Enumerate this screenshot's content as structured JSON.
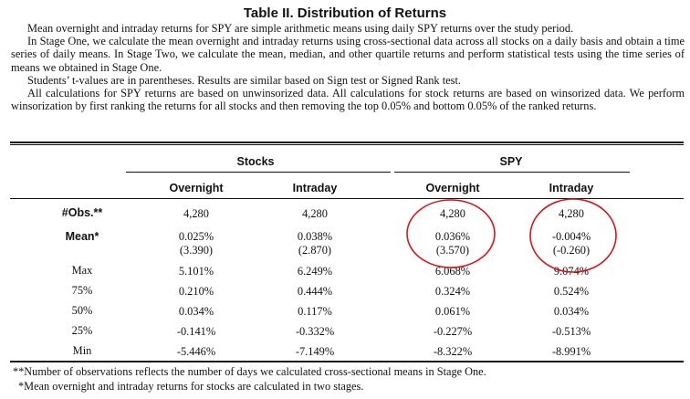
{
  "title": "Table II. Distribution of Returns",
  "description": [
    "Mean overnight and intraday returns for SPY are simple arithmetic means using daily SPY returns over the study period.",
    "In Stage One, we calculate the mean overnight and intraday returns using cross-sectional data across all stocks on a daily basis and obtain a time series of daily means. In Stage Two, we calculate the mean, median, and other quartile returns and perform statistical tests using the time series of means we obtained in Stage One.",
    "Students’ t-values are in parentheses. Results are similar based on Sign test or Signed Rank test.",
    "All calculations for SPY returns are based on unwinsorized data. All calculations for stock returns are based on winsorized data. We perform winsorization by first ranking the returns for all stocks and then removing the top 0.05% and bottom 0.05% of the ranked returns."
  ],
  "table": {
    "groups": [
      "Stocks",
      "SPY"
    ],
    "columns": [
      "Overnight",
      "Intraday",
      "Overnight",
      "Intraday"
    ],
    "rows": [
      {
        "label": "#Obs.**",
        "bold": true,
        "values": [
          "4,280",
          "4,280",
          "4,280",
          "4,280"
        ],
        "tvalues": null
      },
      {
        "label": "Mean*",
        "bold": true,
        "values": [
          "0.025%",
          "0.038%",
          "0.036%",
          "-0.004%"
        ],
        "tvalues": [
          "(3.390)",
          "(2.870)",
          "(3.570)",
          "(-0.260)"
        ]
      },
      {
        "label": "Max",
        "bold": false,
        "values": [
          "5.101%",
          "6.249%",
          "6.068%",
          "9.074%"
        ],
        "tvalues": null
      },
      {
        "label": "75%",
        "bold": false,
        "values": [
          "0.210%",
          "0.444%",
          "0.324%",
          "0.524%"
        ],
        "tvalues": null
      },
      {
        "label": "50%",
        "bold": false,
        "values": [
          "0.034%",
          "0.117%",
          "0.061%",
          "0.034%"
        ],
        "tvalues": null
      },
      {
        "label": "25%",
        "bold": false,
        "values": [
          "-0.141%",
          "-0.332%",
          "-0.227%",
          "-0.513%"
        ],
        "tvalues": null
      },
      {
        "label": "Min",
        "bold": false,
        "values": [
          "-5.446%",
          "-7.149%",
          "-8.322%",
          "-8.991%"
        ],
        "tvalues": null
      }
    ]
  },
  "footnotes": [
    "**Number of observations reflects the number of days we calculated cross-sectional means in Stage One.",
    "*Mean overnight and intraday returns for stocks are calculated in two stages."
  ],
  "annotation_color": "#d8141b"
}
